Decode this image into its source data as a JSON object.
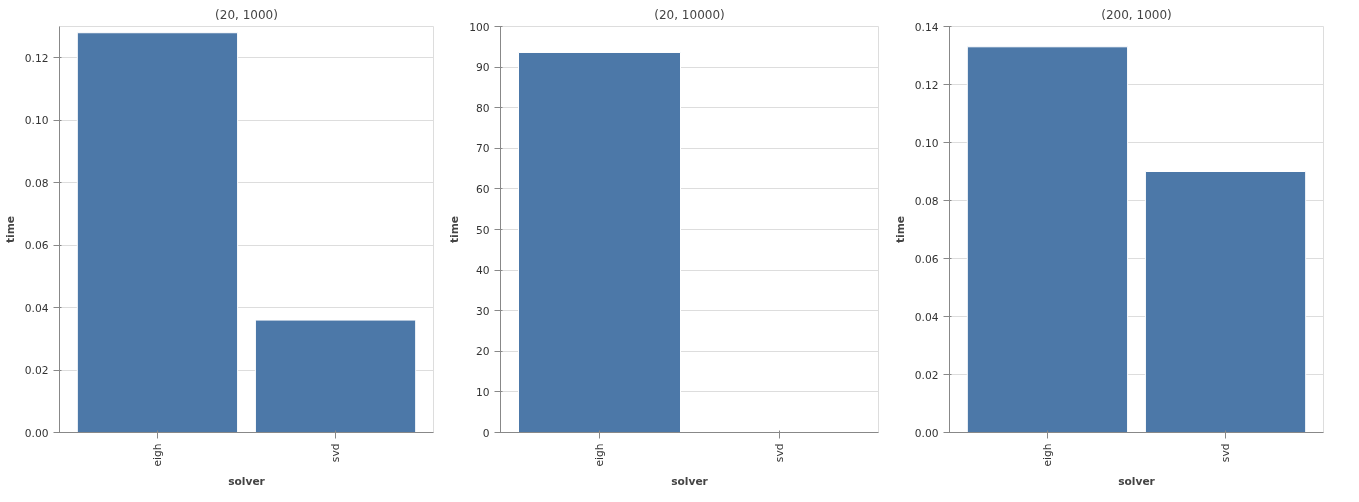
{
  "chart_data": [
    {
      "type": "bar",
      "title": "(20, 1000)",
      "xlabel": "solver",
      "ylabel": "time",
      "categories": [
        "eigh",
        "svd"
      ],
      "values": [
        0.128,
        0.036
      ],
      "color": "#4c78a8",
      "ylim": [
        0,
        0.13
      ],
      "yticks": [
        {
          "value": 0,
          "label": "0.00"
        },
        {
          "value": 0.02,
          "label": "0.02"
        },
        {
          "value": 0.04,
          "label": "0.04"
        },
        {
          "value": 0.06,
          "label": "0.06"
        },
        {
          "value": 0.08,
          "label": "0.08"
        },
        {
          "value": 0.1,
          "label": "0.10"
        },
        {
          "value": 0.12,
          "label": "0.12"
        }
      ],
      "grid": "y"
    },
    {
      "type": "bar",
      "title": "(20, 10000)",
      "xlabel": "solver",
      "ylabel": "time",
      "categories": [
        "eigh",
        "svd"
      ],
      "values": [
        93.6,
        0.1
      ],
      "color": "#4c78a8",
      "ylim": [
        0,
        100
      ],
      "yticks": [
        0,
        10,
        20,
        30,
        40,
        50,
        60,
        70,
        80,
        90,
        100
      ],
      "grid": "y"
    },
    {
      "type": "bar",
      "title": "(200, 1000)",
      "xlabel": "solver",
      "ylabel": "time",
      "categories": [
        "eigh",
        "svd"
      ],
      "values": [
        0.133,
        0.09
      ],
      "color": "#4c78a8",
      "ylim": [
        0,
        0.14
      ],
      "yticks": [
        {
          "value": 0,
          "label": "0.00"
        },
        {
          "value": 0.02,
          "label": "0.02"
        },
        {
          "value": 0.04,
          "label": "0.04"
        },
        {
          "value": 0.06,
          "label": "0.06"
        },
        {
          "value": 0.08,
          "label": "0.08"
        },
        {
          "value": 0.1,
          "label": "0.10"
        },
        {
          "value": 0.12,
          "label": "0.12"
        },
        {
          "value": 0.14,
          "label": "0.14"
        }
      ],
      "grid": "y"
    }
  ]
}
